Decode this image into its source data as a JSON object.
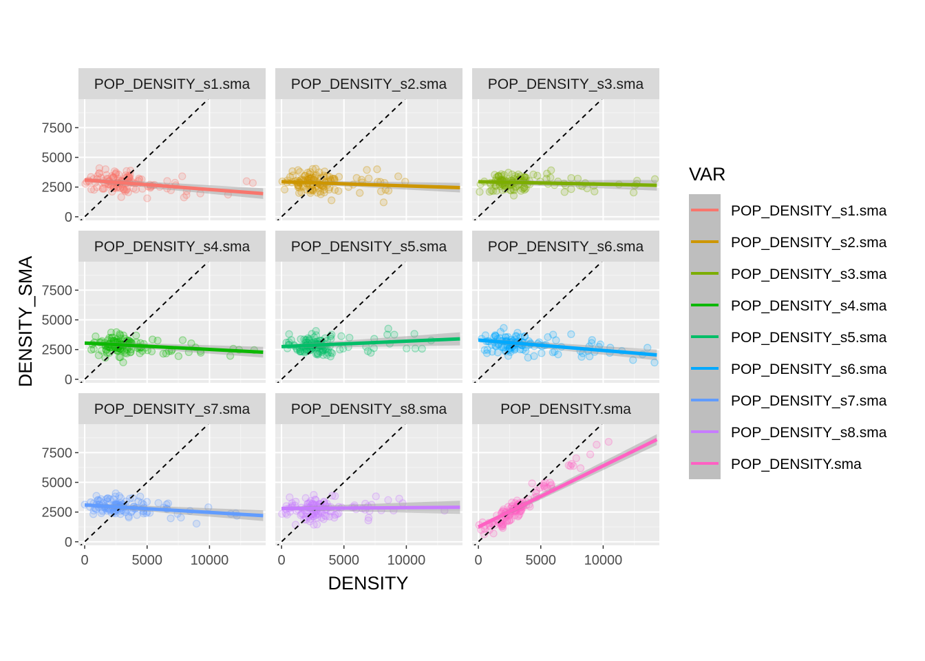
{
  "chart_data": {
    "type": "scatter",
    "xlabel": "DENSITY",
    "ylabel": "DENSITY_SMA",
    "xlim": [
      -500,
      14500
    ],
    "ylim": [
      -300,
      9900
    ],
    "x_ticks": [
      0,
      5000,
      10000
    ],
    "y_ticks": [
      0,
      2500,
      5000,
      7500
    ],
    "grid": true,
    "reference_line": "y = x (dashed)",
    "legend": {
      "title": "VAR",
      "placement": "right"
    },
    "panels": [
      {
        "label": "POP_DENSITY_s1.sma",
        "color": "#F8766D",
        "fit": [
          [
            0,
            3100
          ],
          [
            14300,
            1950
          ]
        ],
        "ci_halfwidth": [
          150,
          450
        ]
      },
      {
        "label": "POP_DENSITY_s2.sma",
        "color": "#CD9600",
        "fit": [
          [
            0,
            2950
          ],
          [
            14300,
            2450
          ]
        ],
        "ci_halfwidth": [
          120,
          400
        ]
      },
      {
        "label": "POP_DENSITY_s3.sma",
        "color": "#7CAE00",
        "fit": [
          [
            0,
            2950
          ],
          [
            14300,
            2650
          ]
        ],
        "ci_halfwidth": [
          120,
          450
        ]
      },
      {
        "label": "POP_DENSITY_s4.sma",
        "color": "#0CB702",
        "fit": [
          [
            0,
            3050
          ],
          [
            14300,
            2280
          ]
        ],
        "ci_halfwidth": [
          130,
          450
        ]
      },
      {
        "label": "POP_DENSITY_s5.sma",
        "color": "#00BE67",
        "fit": [
          [
            0,
            2750
          ],
          [
            14300,
            3400
          ]
        ],
        "ci_halfwidth": [
          130,
          550
        ]
      },
      {
        "label": "POP_DENSITY_s6.sma",
        "color": "#00A9FF",
        "fit": [
          [
            0,
            3300
          ],
          [
            14300,
            2050
          ]
        ],
        "ci_halfwidth": [
          140,
          450
        ]
      },
      {
        "label": "POP_DENSITY_s7.sma",
        "color": "#619CFF",
        "fit": [
          [
            0,
            3100
          ],
          [
            14300,
            2200
          ]
        ],
        "ci_halfwidth": [
          130,
          450
        ]
      },
      {
        "label": "POP_DENSITY_s8.sma",
        "color": "#C77CFF",
        "fit": [
          [
            0,
            2800
          ],
          [
            14300,
            2900
          ]
        ],
        "ci_halfwidth": [
          130,
          550
        ]
      },
      {
        "label": "POP_DENSITY.sma",
        "color": "#FF61C3",
        "fit": [
          [
            0,
            1250
          ],
          [
            14300,
            8600
          ]
        ],
        "ci_halfwidth": [
          150,
          450
        ]
      }
    ]
  }
}
